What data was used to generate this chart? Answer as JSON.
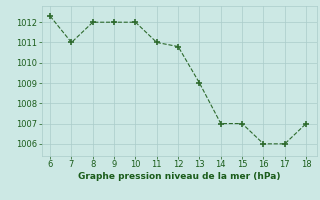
{
  "x": [
    6,
    7,
    8,
    9,
    10,
    11,
    12,
    13,
    14,
    15,
    16,
    17,
    18
  ],
  "y": [
    1012.3,
    1011.0,
    1012.0,
    1012.0,
    1012.0,
    1011.0,
    1010.8,
    1009.0,
    1007.0,
    1007.0,
    1006.0,
    1006.0,
    1007.0
  ],
  "line_color": "#2d6a2d",
  "marker": "+",
  "marker_size": 4,
  "marker_edgewidth": 1.2,
  "linewidth": 0.8,
  "linestyle": "--",
  "bg_color": "#cce8e4",
  "grid_color": "#aaccca",
  "xlabel": "Graphe pression niveau de la mer (hPa)",
  "xlabel_color": "#1a5c1a",
  "xlabel_fontsize": 6.5,
  "tick_fontsize": 6,
  "tick_color": "#1a5c1a",
  "ylim": [
    1005.4,
    1012.8
  ],
  "xlim": [
    5.6,
    18.5
  ],
  "yticks": [
    1006,
    1007,
    1008,
    1009,
    1010,
    1011,
    1012
  ],
  "xticks": [
    6,
    7,
    8,
    9,
    10,
    11,
    12,
    13,
    14,
    15,
    16,
    17,
    18
  ]
}
